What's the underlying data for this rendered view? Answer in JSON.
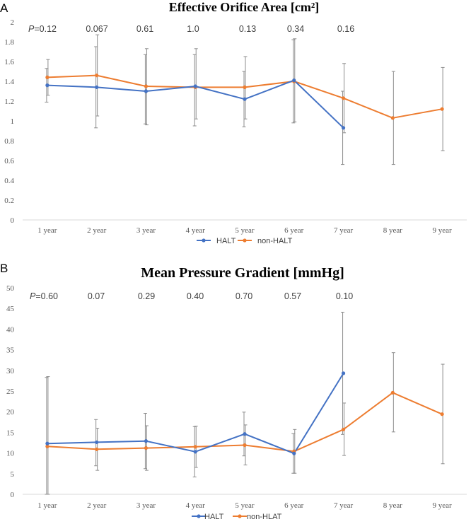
{
  "chart_data": [
    {
      "panel_label": "A",
      "type": "line",
      "title": "Effective Orifice Area [cm²]",
      "categories": [
        "1 year",
        "2 year",
        "3 year",
        "4 year",
        "5 year",
        "6 year",
        "7 year",
        "8 year",
        "9 year"
      ],
      "ylim": [
        0,
        2
      ],
      "yticks": [
        "0",
        "0.2",
        "0.4",
        "0.6",
        "0.8",
        "1",
        "1.2",
        "1.4",
        "1.6",
        "1.8",
        "2"
      ],
      "grid": false,
      "p_prefix": "P",
      "p_values": [
        "=0.12",
        "0.067",
        "0.61",
        "1.0",
        "0.13",
        "0.34",
        "0.16"
      ],
      "legend_position": "bottom",
      "series": [
        {
          "name": "HALT",
          "color": "#4472C4",
          "values": [
            1.36,
            1.34,
            1.3,
            1.35,
            1.22,
            1.41,
            0.93,
            null,
            null
          ],
          "err_low": [
            1.19,
            0.93,
            0.97,
            0.95,
            0.94,
            0.98,
            0.56,
            null,
            null
          ],
          "err_high": [
            1.53,
            1.75,
            1.67,
            1.67,
            1.5,
            1.82,
            1.3,
            null,
            null
          ]
        },
        {
          "name": "non-HALT",
          "color": "#ED7D31",
          "values": [
            1.44,
            1.46,
            1.35,
            1.34,
            1.34,
            1.4,
            1.23,
            1.03,
            1.12
          ],
          "err_low": [
            1.26,
            1.05,
            0.96,
            1.02,
            1.02,
            0.99,
            0.88,
            0.56,
            0.7
          ],
          "err_high": [
            1.62,
            1.87,
            1.73,
            1.73,
            1.65,
            1.83,
            1.58,
            1.5,
            1.54
          ]
        }
      ]
    },
    {
      "panel_label": "B",
      "type": "line",
      "title": "Mean Pressure Gradient [mmHg]",
      "categories": [
        "1 year",
        "2 year",
        "3 year",
        "4 year",
        "5 year",
        "6 year",
        "7 year",
        "8 year",
        "9 year"
      ],
      "ylim": [
        0,
        50
      ],
      "yticks": [
        "0",
        "5",
        "10",
        "15",
        "20",
        "25",
        "30",
        "35",
        "40",
        "45",
        "50"
      ],
      "grid": false,
      "p_prefix": "P",
      "p_values": [
        "=0.60",
        "0.07",
        "0.29",
        "0.40",
        "0.70",
        "0.57",
        "0.10"
      ],
      "legend_position": "bottom",
      "series": [
        {
          "name": "HALT",
          "color": "#4472C4",
          "values": [
            12.3,
            12.6,
            12.9,
            10.3,
            14.6,
            9.9,
            29.3,
            null,
            null
          ],
          "err_low": [
            0,
            6.9,
            6.2,
            4.2,
            9.3,
            5.1,
            14.5,
            null,
            null
          ],
          "err_high": [
            28.3,
            18.1,
            19.6,
            16.4,
            19.9,
            14.7,
            44.1,
            null,
            null
          ]
        },
        {
          "name": "non-HLAT",
          "color": "#ED7D31",
          "values": [
            11.6,
            10.9,
            11.2,
            11.5,
            11.9,
            10.4,
            15.7,
            24.6,
            19.4
          ],
          "err_low": [
            0,
            5.8,
            5.8,
            6.5,
            7.1,
            5.1,
            9.4,
            15.1,
            7.4
          ],
          "err_high": [
            28.5,
            16.0,
            16.6,
            16.5,
            16.8,
            15.7,
            22.1,
            34.3,
            31.5
          ]
        }
      ]
    }
  ]
}
